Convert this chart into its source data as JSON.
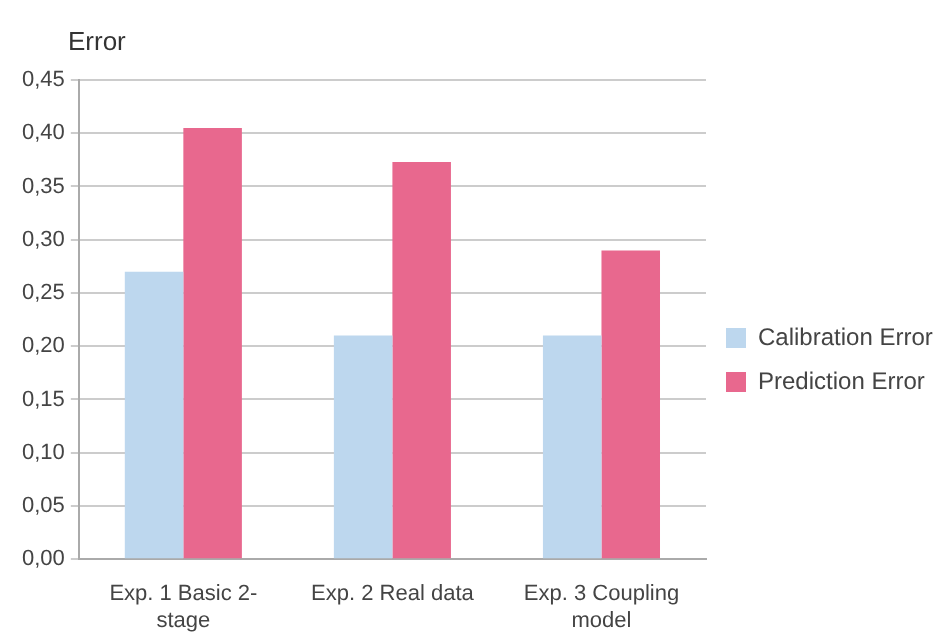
{
  "chart_data": {
    "type": "bar",
    "ylabel": "Error",
    "categories": [
      "Exp. 1 Basic 2-stage",
      "Exp. 2 Real data",
      "Exp. 3 Coupling model"
    ],
    "series": [
      {
        "name": "Calibration Error",
        "color": "#bdd7ee",
        "values": [
          0.27,
          0.21,
          0.21
        ]
      },
      {
        "name": "Prediction Error",
        "color": "#e8688e",
        "values": [
          0.405,
          0.373,
          0.29
        ]
      }
    ],
    "ylim": [
      0,
      0.45
    ],
    "yticks": [
      {
        "value": 0,
        "label": "0,00"
      },
      {
        "value": 0.05,
        "label": "0,05"
      },
      {
        "value": 0.1,
        "label": "0,10"
      },
      {
        "value": 0.15,
        "label": "0,15"
      },
      {
        "value": 0.2,
        "label": "0,20"
      },
      {
        "value": 0.25,
        "label": "0,25"
      },
      {
        "value": 0.3,
        "label": "0,30"
      },
      {
        "value": 0.35,
        "label": "0,35"
      },
      {
        "value": 0.4,
        "label": "0,40"
      },
      {
        "value": 0.45,
        "label": "0,45"
      }
    ],
    "grid": "y",
    "legend": "right"
  }
}
